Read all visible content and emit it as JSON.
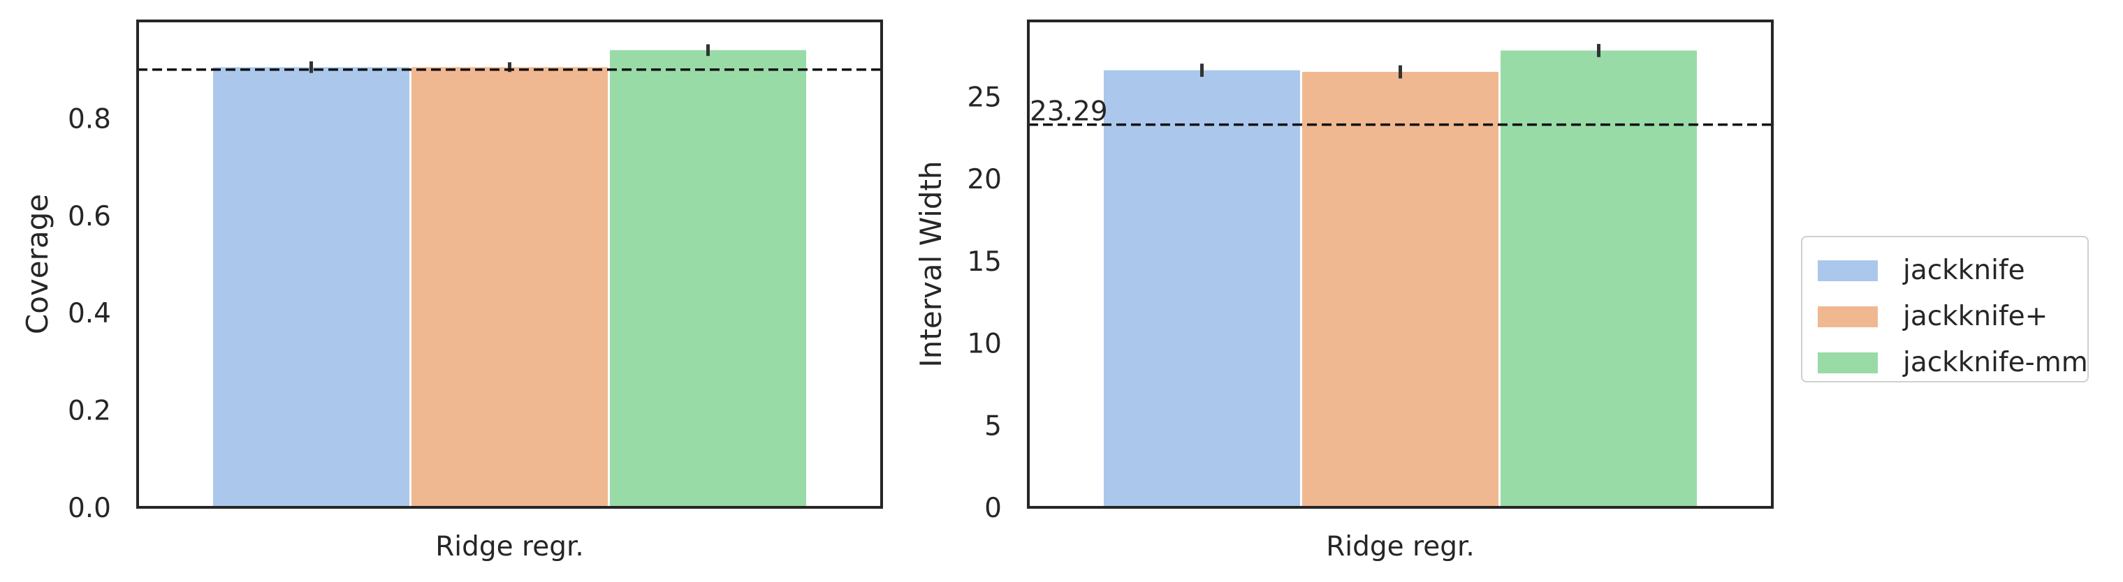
{
  "chart_data": [
    {
      "type": "bar",
      "categories": [
        "Ridge regr."
      ],
      "series": [
        {
          "name": "jackknife",
          "values": [
            0.905
          ],
          "err": [
            0.012
          ]
        },
        {
          "name": "jackknife+",
          "values": [
            0.905
          ],
          "err": [
            0.01
          ]
        },
        {
          "name": "jackknife-mm",
          "values": [
            0.94
          ],
          "err": [
            0.012
          ]
        }
      ],
      "xlabel": "",
      "ylabel": "Coverage",
      "ylim": [
        0,
        1.0
      ],
      "yticks": [
        "0.0",
        "0.2",
        "0.4",
        "0.6",
        "0.8"
      ],
      "ytick_values": [
        0,
        0.2,
        0.4,
        0.6,
        0.8
      ],
      "reference_line": {
        "value": 0.9,
        "style": "dashed",
        "label": ""
      },
      "grid": false
    },
    {
      "type": "bar",
      "categories": [
        "Ridge regr."
      ],
      "series": [
        {
          "name": "jackknife",
          "values": [
            26.6
          ],
          "err": [
            0.4
          ]
        },
        {
          "name": "jackknife+",
          "values": [
            26.5
          ],
          "err": [
            0.4
          ]
        },
        {
          "name": "jackknife-mm",
          "values": [
            27.8
          ],
          "err": [
            0.4
          ]
        }
      ],
      "xlabel": "",
      "ylabel": "Interval Width",
      "ylim": [
        0,
        29.6
      ],
      "yticks": [
        "0",
        "5",
        "10",
        "15",
        "20",
        "25"
      ],
      "ytick_values": [
        0,
        5,
        10,
        15,
        20,
        25
      ],
      "reference_line": {
        "value": 23.29,
        "style": "dashed",
        "label": "23.29"
      },
      "grid": false
    }
  ],
  "legend": {
    "placement": "right",
    "items": [
      {
        "label": "jackknife",
        "color": "#abc8ec"
      },
      {
        "label": "jackknife+",
        "color": "#f0b891"
      },
      {
        "label": "jackknife-mm",
        "color": "#98dba7"
      }
    ]
  },
  "colors": {
    "axis": "#262626",
    "ref_line": "#111111",
    "errbar": "#333333"
  }
}
